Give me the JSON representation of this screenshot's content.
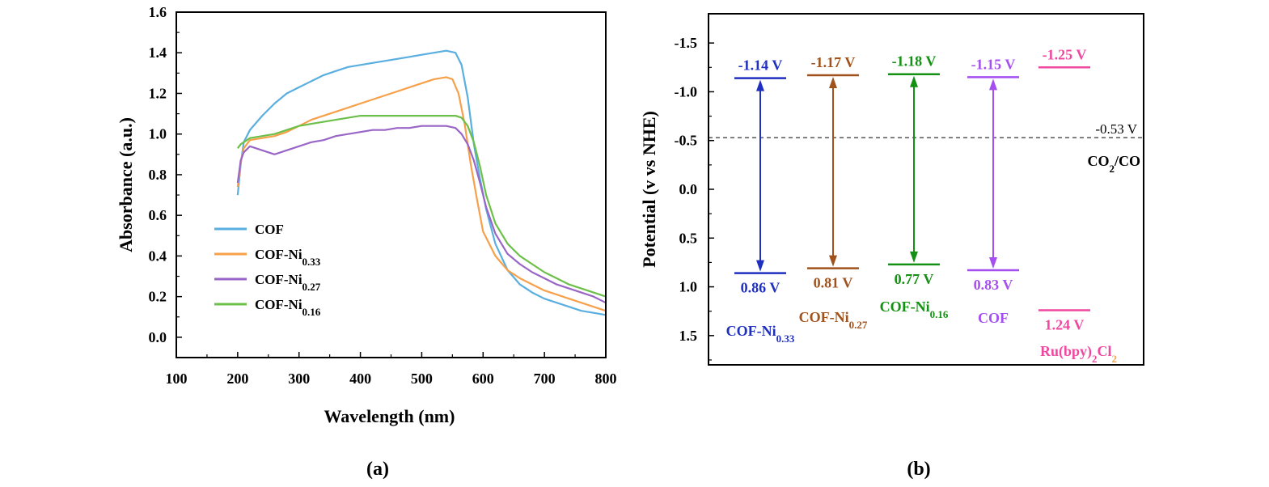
{
  "chart_data": [
    {
      "type": "line",
      "panel_label": "(a)",
      "xlabel": "Wavelength (nm)",
      "ylabel": "Absorbance (a.u.)",
      "xlim": [
        100,
        800
      ],
      "ylim": [
        -0.1,
        1.6
      ],
      "xticks": [
        "100",
        "200",
        "300",
        "400",
        "500",
        "600",
        "700",
        "800"
      ],
      "yticks": [
        "0.0",
        "0.2",
        "0.4",
        "0.6",
        "0.8",
        "1.0",
        "1.2",
        "1.4",
        "1.6"
      ],
      "legend_position": "bottom-left",
      "series": [
        {
          "name": "COF",
          "subscript": "",
          "color": "#5aaee0",
          "x": [
            200,
            205,
            210,
            220,
            240,
            260,
            280,
            300,
            320,
            340,
            360,
            380,
            400,
            420,
            440,
            460,
            480,
            500,
            520,
            540,
            555,
            565,
            575,
            585,
            595,
            605,
            620,
            640,
            660,
            680,
            700,
            720,
            740,
            760,
            780,
            800
          ],
          "y": [
            0.7,
            0.85,
            0.96,
            1.02,
            1.09,
            1.15,
            1.2,
            1.23,
            1.26,
            1.29,
            1.31,
            1.33,
            1.34,
            1.35,
            1.36,
            1.37,
            1.38,
            1.39,
            1.4,
            1.41,
            1.4,
            1.34,
            1.18,
            0.95,
            0.78,
            0.63,
            0.46,
            0.33,
            0.26,
            0.22,
            0.19,
            0.17,
            0.15,
            0.13,
            0.12,
            0.11
          ]
        },
        {
          "name": "COF-Ni",
          "subscript": "0.33",
          "color": "#f7a04a",
          "x": [
            200,
            205,
            210,
            220,
            240,
            260,
            280,
            300,
            320,
            340,
            360,
            380,
            400,
            420,
            440,
            460,
            480,
            500,
            520,
            540,
            550,
            560,
            570,
            580,
            590,
            600,
            620,
            640,
            660,
            680,
            700,
            720,
            740,
            760,
            780,
            800
          ],
          "y": [
            0.74,
            0.86,
            0.93,
            0.97,
            0.98,
            0.99,
            1.01,
            1.04,
            1.07,
            1.09,
            1.11,
            1.13,
            1.15,
            1.17,
            1.19,
            1.21,
            1.23,
            1.25,
            1.27,
            1.28,
            1.27,
            1.2,
            1.05,
            0.85,
            0.68,
            0.52,
            0.4,
            0.33,
            0.29,
            0.26,
            0.23,
            0.21,
            0.19,
            0.17,
            0.15,
            0.13
          ]
        },
        {
          "name": "COF-Ni",
          "subscript": "0.27",
          "color": "#9966c7",
          "x": [
            200,
            205,
            210,
            220,
            230,
            240,
            250,
            260,
            270,
            280,
            300,
            320,
            340,
            360,
            380,
            400,
            420,
            440,
            460,
            480,
            500,
            520,
            540,
            555,
            565,
            575,
            585,
            595,
            605,
            620,
            640,
            660,
            680,
            700,
            720,
            740,
            760,
            780,
            800
          ],
          "y": [
            0.76,
            0.87,
            0.91,
            0.94,
            0.93,
            0.92,
            0.91,
            0.9,
            0.91,
            0.92,
            0.94,
            0.96,
            0.97,
            0.99,
            1.0,
            1.01,
            1.02,
            1.02,
            1.03,
            1.03,
            1.04,
            1.04,
            1.04,
            1.03,
            1.0,
            0.95,
            0.87,
            0.76,
            0.64,
            0.51,
            0.41,
            0.36,
            0.32,
            0.29,
            0.26,
            0.24,
            0.22,
            0.2,
            0.17
          ]
        },
        {
          "name": "COF-Ni",
          "subscript": "0.16",
          "color": "#6cc04a",
          "x": [
            200,
            205,
            210,
            220,
            240,
            260,
            280,
            300,
            320,
            340,
            360,
            380,
            400,
            420,
            440,
            460,
            480,
            500,
            520,
            540,
            555,
            565,
            575,
            585,
            595,
            605,
            620,
            640,
            660,
            680,
            700,
            720,
            740,
            760,
            780,
            800
          ],
          "y": [
            0.93,
            0.95,
            0.96,
            0.98,
            0.99,
            1.0,
            1.02,
            1.04,
            1.05,
            1.06,
            1.07,
            1.08,
            1.09,
            1.09,
            1.09,
            1.09,
            1.09,
            1.09,
            1.09,
            1.09,
            1.09,
            1.08,
            1.04,
            0.96,
            0.84,
            0.7,
            0.56,
            0.46,
            0.4,
            0.36,
            0.32,
            0.29,
            0.26,
            0.24,
            0.22,
            0.2
          ]
        }
      ]
    },
    {
      "type": "band-diagram",
      "panel_label": "(b)",
      "ylabel": "Potential (v vs NHE)",
      "ylim": [
        -1.8,
        1.8
      ],
      "inverted_y": true,
      "yticks": [
        "-1.5",
        "-1.0",
        "-0.5",
        "0.0",
        "0.5",
        "1.0",
        "1.5"
      ],
      "reference": {
        "value": -0.53,
        "label": "-0.53 V",
        "name": "CO",
        "name_sub": "2",
        "name_tail": "/CO"
      },
      "bands": [
        {
          "name": "COF-Ni",
          "subscript": "0.33",
          "tail": "",
          "color": "#1f2fc0",
          "cb": -1.14,
          "vb": 0.86,
          "cb_label": "-1.14 V",
          "vb_label": "0.86 V",
          "arrow": true
        },
        {
          "name": "COF-Ni",
          "subscript": "0.27",
          "tail": "",
          "color": "#a0521c",
          "cb": -1.17,
          "vb": 0.81,
          "cb_label": "-1.17 V",
          "vb_label": "0.81 V",
          "arrow": true
        },
        {
          "name": "COF-Ni",
          "subscript": "0.16",
          "tail": "",
          "color": "#149114",
          "cb": -1.18,
          "vb": 0.77,
          "cb_label": "-1.18 V",
          "vb_label": "0.77 V",
          "arrow": true
        },
        {
          "name": "COF",
          "subscript": "",
          "tail": "",
          "color": "#a64ff0",
          "cb": -1.15,
          "vb": 0.83,
          "cb_label": "-1.15 V",
          "vb_label": "0.83 V",
          "arrow": true
        },
        {
          "name": "Ru(bpy)",
          "subscript": "2",
          "tail": "Cl",
          "tail_sub": "2",
          "color": "#f048a0",
          "cb": -1.25,
          "vb": 1.24,
          "cb_label": "-1.25 V",
          "vb_label": "1.24 V",
          "arrow": false
        }
      ]
    }
  ]
}
